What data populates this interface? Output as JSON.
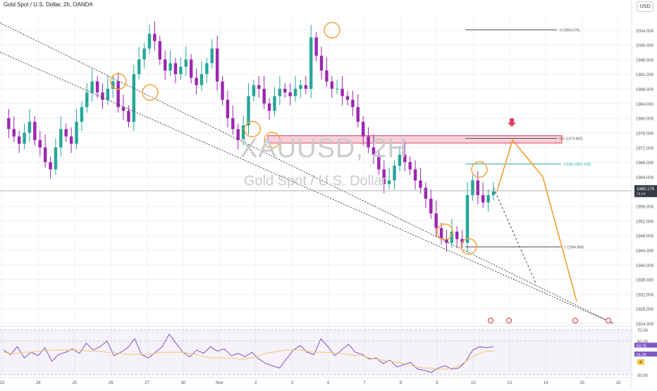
{
  "header": {
    "title": "Gold Spot / U.S. Dollar, 2h, OANDA",
    "currency_button": "USD"
  },
  "watermark": {
    "symbol": "XAUUSD, 2H",
    "description": "Gold Spot / U.S. Dollar"
  },
  "colors": {
    "up": "#26a69a",
    "down": "#9c27b0",
    "zone_fill": "#f5c6cf",
    "zone_border": "#e0415f",
    "circle": "#f7a33b",
    "projection": "#f59a23",
    "rsi": "#7e57c2",
    "rsi_ma": "#f5c66d",
    "fib_618": "#26a69a"
  },
  "chart_data": [
    {
      "type": "line",
      "title": "Gold Spot / U.S. Dollar, 2h, OANDA",
      "ylim": [
        1924,
        2008
      ],
      "y_ticks": [
        "2004.000",
        "2000.000",
        "1996.000",
        "1992.000",
        "1988.000",
        "1984.000",
        "1980.000",
        "1976.000",
        "1972.000",
        "1968.000",
        "1964.000",
        "1960.000",
        "1956.000",
        "1952.000",
        "1948.000",
        "1944.000",
        "1940.000",
        "1936.000",
        "1932.000",
        "1928.000",
        "1924.000"
      ],
      "x_ticks": [
        "23",
        "24",
        "25",
        "26",
        "27",
        "30",
        "Nov",
        "2",
        "3",
        "6",
        "7",
        "8",
        "9",
        "10",
        "13",
        "14",
        "15",
        "16"
      ],
      "price_path": [
        1980,
        1977,
        1975,
        1973,
        1976,
        1979,
        1974,
        1972,
        1968,
        1966,
        1972,
        1977,
        1975,
        1973,
        1979,
        1983,
        1987,
        1990,
        1987,
        1985,
        1988,
        1990,
        1983,
        1982,
        1979,
        1992,
        1996,
        1999,
        2003,
        2001,
        1996,
        1993,
        1995,
        1992,
        1994,
        1996,
        1991,
        1989,
        1992,
        1995,
        1999,
        1990,
        1985,
        1980,
        1977,
        1974,
        1978,
        1986,
        1989,
        1988,
        1984,
        1982,
        1986,
        1988,
        1987,
        1986,
        1988,
        1989,
        1988,
        2002,
        1997,
        1993,
        1990,
        1988,
        1988,
        1986,
        1985,
        1983,
        1979,
        1975,
        1972,
        1970,
        1966,
        1962,
        1963,
        1967,
        1970,
        1968,
        1966,
        1963,
        1961,
        1958,
        1954,
        1950,
        1947,
        1946,
        1949,
        1947,
        1946,
        1959,
        1963,
        1959,
        1957,
        1959,
        1960
      ],
      "current_price": "1960.175",
      "countdown": "25:54",
      "fib_levels": [
        {
          "label": "0 (2004.076)",
          "value": 2004.076
        },
        {
          "label": "0.5 (1974.466)",
          "value": 1974.466
        },
        {
          "label": "0.618 (1967.478)",
          "value": 1967.478
        },
        {
          "label": "1 (1944.856)",
          "value": 1944.856
        }
      ],
      "supply_zone": {
        "from": 1973.2,
        "to": 1975.2
      },
      "projection_path": [
        1960,
        1974,
        1964,
        1930
      ],
      "secondary_projection": [
        1961,
        1935
      ],
      "grid": true
    },
    {
      "type": "line",
      "title": "",
      "ylim": [
        30,
        70
      ],
      "y_ticks": [
        "70.00",
        "60.00",
        "30.00"
      ],
      "rsi_value": "54.76",
      "rsi_ma_value": "51.26",
      "badge": "4",
      "rsi_path": [
        52,
        48,
        55,
        45,
        50,
        47,
        54,
        42,
        48,
        50,
        53,
        49,
        58,
        52,
        55,
        60,
        47,
        50,
        54,
        62,
        48,
        45,
        50,
        55,
        66,
        58,
        50,
        46,
        52,
        49,
        55,
        51,
        53,
        47,
        49,
        46,
        50,
        44,
        40,
        38,
        36,
        44,
        52,
        56,
        50,
        48,
        62,
        55,
        47,
        52,
        57,
        50,
        48,
        44,
        45,
        40,
        43,
        37,
        39,
        41,
        35,
        34,
        32,
        36,
        38,
        35,
        36,
        42,
        52,
        55,
        54,
        55
      ],
      "rsi_ma_path": [
        50,
        49,
        49,
        50,
        50,
        51,
        51,
        52,
        52,
        52,
        52,
        52,
        51,
        51,
        51,
        50,
        50,
        49,
        48,
        48,
        48,
        48,
        49,
        50,
        50,
        50,
        50,
        49,
        48,
        46,
        45,
        45,
        45,
        45,
        44,
        44,
        45,
        47,
        49,
        50,
        51,
        52,
        52,
        52,
        51,
        50,
        50,
        50,
        49,
        49,
        48,
        47,
        47,
        45,
        44,
        43,
        42,
        41,
        40,
        38,
        37,
        36,
        36,
        35,
        35,
        36,
        38,
        42,
        46,
        49,
        51,
        51
      ]
    }
  ]
}
